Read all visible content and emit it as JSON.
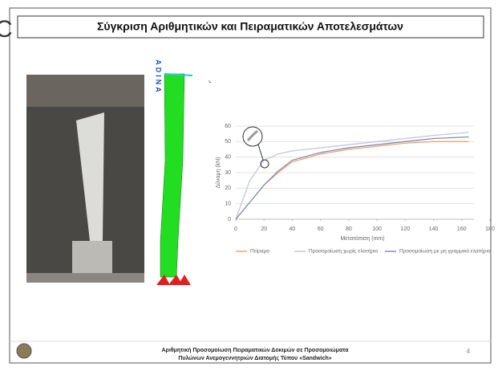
{
  "slide": {
    "stray": "C",
    "title": "Σύγκριση Αριθμητικών και Πειραματικών Αποτελεσμάτων",
    "model_label": "ADINA",
    "footer_line1": "Αριθμητική Προσομοίωση Πειραματικών Δοκιμών σε Προσομοιώματα",
    "footer_line2": "Πυλώνων Ανεμογεννητριών Διατομής Τύπου «Sandwich»",
    "page": "4"
  },
  "chart_data": {
    "type": "line",
    "xlabel": "Μετατόπιση (mm)",
    "ylabel": "Δύναμη (kN)",
    "x": [
      0,
      10,
      20,
      30,
      40,
      60,
      80,
      100,
      120,
      140,
      165
    ],
    "series": [
      {
        "name": "Πείραμα",
        "color": "#f5a56b",
        "values": [
          0,
          11,
          22,
          30,
          37,
          42,
          45,
          47,
          49,
          50,
          50
        ]
      },
      {
        "name": "Προσομοίωση χωρίς ελατήριο",
        "color": "#c3c8dc",
        "values": [
          0,
          25,
          38,
          42,
          44,
          46,
          48,
          50,
          52,
          54,
          56
        ]
      },
      {
        "name": "Προσομοίωση με μη γραμμικό ελατήριο",
        "color": "#7d8cc0",
        "values": [
          0,
          11,
          22,
          31,
          38,
          43,
          46,
          48,
          50,
          52,
          53
        ]
      }
    ],
    "xlim": [
      0,
      180
    ],
    "xticks": [
      0,
      20,
      40,
      60,
      80,
      100,
      120,
      140,
      160,
      180
    ],
    "ylim": [
      0,
      60
    ],
    "yticks": [
      0,
      10,
      20,
      30,
      40,
      50,
      60
    ],
    "grid": true
  }
}
